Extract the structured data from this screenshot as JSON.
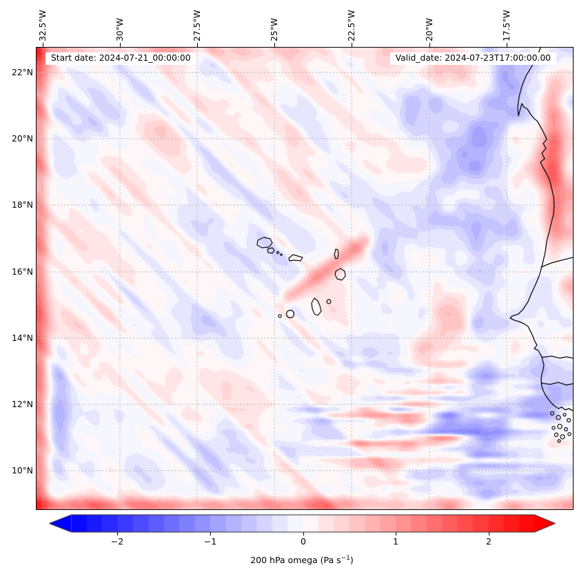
{
  "plot": {
    "start_date_label": "Start date: 2024-07-21_00:00:00",
    "valid_date_label": "Valid_date: 2024-07-23T17:00:00.00"
  },
  "axes": {
    "top_tick_labels": [
      "32.5°W",
      "30°W",
      "27.5°W",
      "25°W",
      "22.5°W",
      "20°W",
      "17.5°W"
    ],
    "left_tick_labels": [
      "22°N",
      "20°N",
      "18°N",
      "16°N",
      "14°N",
      "12°N",
      "10°N"
    ]
  },
  "colorbar": {
    "label_prefix": "200 hPa omega (Pa s",
    "label_exponent": "−1",
    "label_suffix": ")",
    "tick_labels": [
      "−2",
      "−1",
      "0",
      "1",
      "2"
    ],
    "tick_values": [
      -2,
      -1,
      0,
      1,
      2
    ],
    "vmin": -2.5,
    "vmax": 2.5,
    "n_levels": 30,
    "extend": "both",
    "colormap": "bwr",
    "color_min": "#0000ff",
    "color_mid": "#ffffff",
    "color_max": "#ff0000"
  },
  "chart_data": {
    "type": "heatmap",
    "field_name": "200 hPa omega",
    "units": "Pa s−1",
    "x_ticks": [
      "32.5°W",
      "30°W",
      "27.5°W",
      "25°W",
      "22.5°W",
      "20°W",
      "17.5°W"
    ],
    "y_ticks": [
      "22°N",
      "20°N",
      "18°N",
      "16°N",
      "14°N",
      "12°N",
      "10°N"
    ],
    "colorbar_ticks": [
      -2,
      -1,
      0,
      1,
      2
    ],
    "value_range": [
      -2.5,
      2.5
    ],
    "grid": "dashed lat-lon graticule at each labeled tick",
    "legend_position": "horizontal colorbar below map, arrows both ends",
    "geography": [
      "West African coast (Mauritania, Senegal, Gambia, Guinea-Bissau)",
      "Cape Verde archipelago",
      "Bijagos islands"
    ],
    "regions": [
      {
        "area": "domain rim (west, south, top edges)",
        "value": "+1 to +2 red band"
      },
      {
        "area": "west / central ocean",
        "value": "−0.5 to +0.5 pale mottling with SW–NE lavender streaks"
      },
      {
        "area": "north of coast inland strip ~17°W, 16–22°N",
        "value": "+1 to +1.5 red band"
      },
      {
        "area": "offshore strip west of coastline",
        "value": "−0.5 to −1 blue band"
      },
      {
        "area": "southeast quadrant 9–13°N east of 25°W",
        "value": "alternating zonal streaks −1 to +2, red dominant"
      },
      {
        "area": "east of Cape Verde islands",
        "value": "mixed red/blue filaments ±1"
      }
    ]
  }
}
